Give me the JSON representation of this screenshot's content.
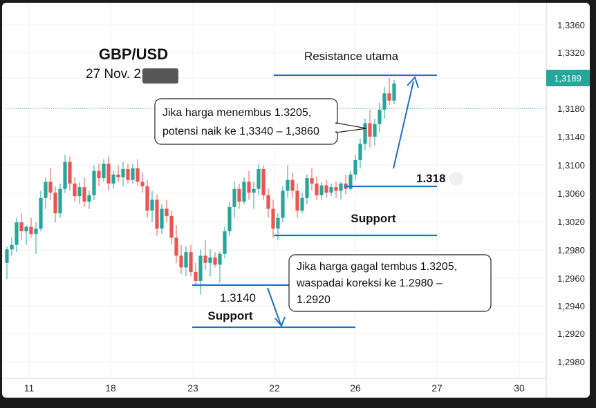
{
  "title": "GBP/USD",
  "date_label": "27 Nov. 2",
  "colors": {
    "up": "#26a69a",
    "down": "#ef5350",
    "level_line": "#1f6fc5",
    "price_tag_bg": "#26a69a"
  },
  "current_price": "1,3189",
  "annotations": {
    "resistance_label": "Resistance utama",
    "support_label_1": "Support",
    "support_label_2": "Support",
    "level_label_1": "1.318",
    "level_label_2": "1.3140",
    "bull_box": [
      "Jika harga menembus 1.3205,",
      "potensi naik ke 1,3340 – 1,3860"
    ],
    "bear_box": [
      "Jika harga gagal tembus 1.3205,",
      "waspadai koreksi ke 1.2980 –",
      "1.2920"
    ]
  },
  "chart_data": {
    "type": "candlestick",
    "title": "GBP/USD",
    "y_tick_labels": [
      "1,3360",
      "1,3320",
      "1,3189",
      "1,3180",
      "1,3140",
      "1,3100",
      "1,3060",
      "1,3020",
      "1,2980",
      "1,2960",
      "1,2940",
      "1,2920",
      "1,2980"
    ],
    "x_tick_labels": [
      "11",
      "18",
      "23",
      "22",
      "26",
      "27",
      "30"
    ],
    "ylim": [
      1.29,
      1.338
    ],
    "levels": [
      {
        "name": "Resistance utama",
        "value": 1.3205
      },
      {
        "name": "Support",
        "value": 1.3075
      },
      {
        "name": "Support",
        "value": 1.3005
      },
      {
        "name": "Support",
        "value": 1.2935
      }
    ],
    "candles_ohlc": [
      [
        1.299,
        1.3008,
        1.2972,
        1.3005
      ],
      [
        1.3005,
        1.3018,
        1.2998,
        1.301
      ],
      [
        1.301,
        1.304,
        1.3002,
        1.3035
      ],
      [
        1.3035,
        1.3045,
        1.3015,
        1.3025
      ],
      [
        1.3025,
        1.3032,
        1.301,
        1.303
      ],
      [
        1.303,
        1.304,
        1.3018,
        1.3022
      ],
      [
        1.3022,
        1.3035,
        1.3,
        1.3028
      ],
      [
        1.3028,
        1.307,
        1.3025,
        1.3062
      ],
      [
        1.3062,
        1.3085,
        1.305,
        1.308
      ],
      [
        1.308,
        1.3095,
        1.306,
        1.3068
      ],
      [
        1.3068,
        1.3075,
        1.3035,
        1.3045
      ],
      [
        1.3045,
        1.3078,
        1.304,
        1.3072
      ],
      [
        1.3072,
        1.311,
        1.3068,
        1.3102
      ],
      [
        1.3102,
        1.3108,
        1.307,
        1.3078
      ],
      [
        1.3078,
        1.3085,
        1.3058,
        1.3064
      ],
      [
        1.3064,
        1.308,
        1.3055,
        1.3074
      ],
      [
        1.3074,
        1.3085,
        1.3052,
        1.3058
      ],
      [
        1.3058,
        1.307,
        1.305,
        1.3065
      ],
      [
        1.3065,
        1.3098,
        1.306,
        1.3092
      ],
      [
        1.3092,
        1.31,
        1.3075,
        1.3084
      ],
      [
        1.3084,
        1.3105,
        1.308,
        1.31
      ],
      [
        1.31,
        1.3108,
        1.307,
        1.3078
      ],
      [
        1.3078,
        1.3092,
        1.3072,
        1.3088
      ],
      [
        1.3088,
        1.3098,
        1.308,
        1.3085
      ],
      [
        1.3085,
        1.3102,
        1.3075,
        1.3094
      ],
      [
        1.3094,
        1.31,
        1.3078,
        1.3082
      ],
      [
        1.3082,
        1.31,
        1.3078,
        1.3095
      ],
      [
        1.3095,
        1.3105,
        1.3075,
        1.308
      ],
      [
        1.308,
        1.309,
        1.3068,
        1.3075
      ],
      [
        1.3075,
        1.3082,
        1.304,
        1.3048
      ],
      [
        1.3048,
        1.307,
        1.3035,
        1.306
      ],
      [
        1.306,
        1.3066,
        1.302,
        1.3028
      ],
      [
        1.3028,
        1.3055,
        1.3022,
        1.305
      ],
      [
        1.305,
        1.306,
        1.3035,
        1.3042
      ],
      [
        1.3042,
        1.3048,
        1.301,
        1.3018
      ],
      [
        1.3018,
        1.3032,
        1.299,
        1.2998
      ],
      [
        1.2998,
        1.301,
        1.2978,
        1.2985
      ],
      [
        1.2985,
        1.3008,
        1.2975,
        1.3002
      ],
      [
        1.3002,
        1.301,
        1.2975,
        1.298
      ],
      [
        1.298,
        1.299,
        1.2965,
        1.297
      ],
      [
        1.297,
        1.3005,
        1.2955,
        1.2998
      ],
      [
        1.2998,
        1.3015,
        1.2982,
        1.299
      ],
      [
        1.299,
        1.3005,
        1.2975,
        1.2996
      ],
      [
        1.2996,
        1.3002,
        1.2985,
        1.2988
      ],
      [
        1.2988,
        1.3002,
        1.2968,
        1.3
      ],
      [
        1.3,
        1.303,
        1.2995,
        1.3025
      ],
      [
        1.3025,
        1.3058,
        1.302,
        1.3052
      ],
      [
        1.3052,
        1.308,
        1.304,
        1.3072
      ],
      [
        1.3072,
        1.3078,
        1.305,
        1.3058
      ],
      [
        1.3058,
        1.3085,
        1.3055,
        1.308
      ],
      [
        1.308,
        1.3092,
        1.306,
        1.3068
      ],
      [
        1.3068,
        1.308,
        1.305,
        1.3072
      ],
      [
        1.3072,
        1.31,
        1.3065,
        1.3094
      ],
      [
        1.3094,
        1.3098,
        1.306,
        1.3065
      ],
      [
        1.3065,
        1.3072,
        1.304,
        1.305
      ],
      [
        1.305,
        1.306,
        1.3018,
        1.3028
      ],
      [
        1.3028,
        1.3045,
        1.3015,
        1.304
      ],
      [
        1.304,
        1.3075,
        1.3035,
        1.307
      ],
      [
        1.307,
        1.3098,
        1.3062,
        1.3082
      ],
      [
        1.3082,
        1.309,
        1.3062,
        1.307
      ],
      [
        1.307,
        1.3078,
        1.304,
        1.3048
      ],
      [
        1.3048,
        1.3068,
        1.3045,
        1.3062
      ],
      [
        1.3062,
        1.3088,
        1.3055,
        1.3084
      ],
      [
        1.3084,
        1.3095,
        1.307,
        1.3078
      ],
      [
        1.3078,
        1.3086,
        1.306,
        1.3065
      ],
      [
        1.3065,
        1.308,
        1.306,
        1.3076
      ],
      [
        1.3076,
        1.3082,
        1.3062,
        1.3068
      ],
      [
        1.3068,
        1.3078,
        1.3064,
        1.3074
      ],
      [
        1.3074,
        1.308,
        1.3062,
        1.307
      ],
      [
        1.307,
        1.308,
        1.306,
        1.3078
      ],
      [
        1.3078,
        1.3088,
        1.3066,
        1.3072
      ],
      [
        1.3072,
        1.3092,
        1.307,
        1.3088
      ],
      [
        1.3088,
        1.311,
        1.3082,
        1.3104
      ],
      [
        1.3104,
        1.3128,
        1.3095,
        1.3122
      ],
      [
        1.3122,
        1.315,
        1.3115,
        1.3145
      ],
      [
        1.3145,
        1.316,
        1.3118,
        1.313
      ],
      [
        1.313,
        1.315,
        1.312,
        1.3144
      ],
      [
        1.3144,
        1.3168,
        1.3135,
        1.316
      ],
      [
        1.316,
        1.3185,
        1.315,
        1.3178
      ],
      [
        1.3178,
        1.3195,
        1.3165,
        1.317
      ],
      [
        1.317,
        1.3193,
        1.3166,
        1.3189
      ]
    ]
  }
}
